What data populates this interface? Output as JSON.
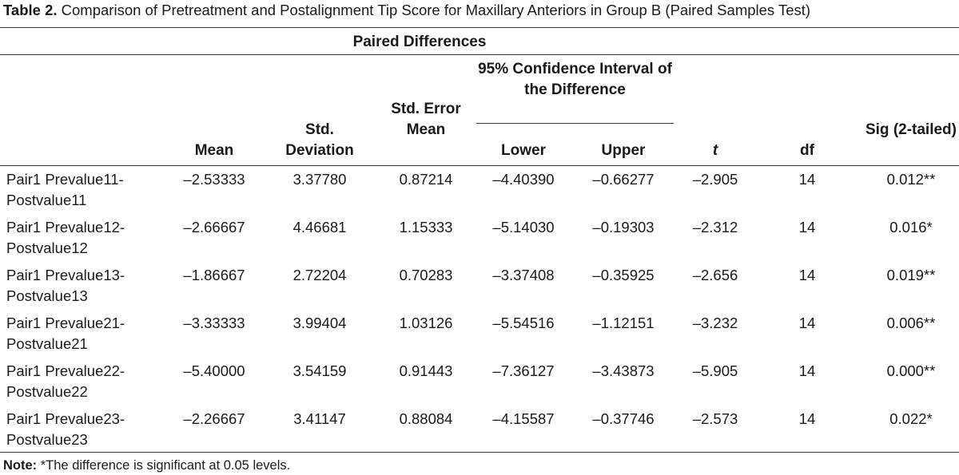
{
  "caption": {
    "label": "Table 2.",
    "text": " Comparison of Pretreatment and Postalignment Tip Score for Maxillary Anteriors in Group B (Paired Samples Test)"
  },
  "header": {
    "paired_differences": "Paired Differences",
    "ci": "95% Confidence Interval of the Difference",
    "mean": "Mean",
    "std_deviation": "Std. Deviation",
    "std_error_mean": "Std. Error Mean",
    "lower": "Lower",
    "upper": "Upper",
    "t": "t",
    "df": "df",
    "sig": "Sig (2-tailed)"
  },
  "rows": [
    {
      "label": "Pair1 Prevalue11-Postvalue11",
      "mean": "–2.53333",
      "std": "3.37780",
      "sem": "0.87214",
      "lower": "–4.40390",
      "upper": "–0.66277",
      "t": "–2.905",
      "df": "14",
      "sig": "0.012**"
    },
    {
      "label": "Pair1 Prevalue12-Postvalue12",
      "mean": "–2.66667",
      "std": "4.46681",
      "sem": "1.15333",
      "lower": "–5.14030",
      "upper": "–0.19303",
      "t": "–2.312",
      "df": "14",
      "sig": "0.016*"
    },
    {
      "label": "Pair1 Prevalue13-Postvalue13",
      "mean": "–1.86667",
      "std": "2.72204",
      "sem": "0.70283",
      "lower": "–3.37408",
      "upper": "–0.35925",
      "t": "–2.656",
      "df": "14",
      "sig": "0.019**"
    },
    {
      "label": "Pair1 Prevalue21-Postvalue21",
      "mean": "–3.33333",
      "std": "3.99404",
      "sem": "1.03126",
      "lower": "–5.54516",
      "upper": "–1.12151",
      "t": "–3.232",
      "df": "14",
      "sig": "0.006**"
    },
    {
      "label": "Pair1 Prevalue22-Postvalue22",
      "mean": "–5.40000",
      "std": "3.54159",
      "sem": "0.91443",
      "lower": "–7.36127",
      "upper": "–3.43873",
      "t": "–5.905",
      "df": "14",
      "sig": "0.000**"
    },
    {
      "label": "Pair1 Prevalue23-Postvalue23",
      "mean": "–2.26667",
      "std": "3.41147",
      "sem": "0.88084",
      "lower": "–4.15587",
      "upper": "–0.37746",
      "t": "–2.573",
      "df": "14",
      "sig": "0.022*"
    }
  ],
  "note": {
    "label": "Note:",
    "text": " *The difference is significant at 0.05 levels."
  }
}
